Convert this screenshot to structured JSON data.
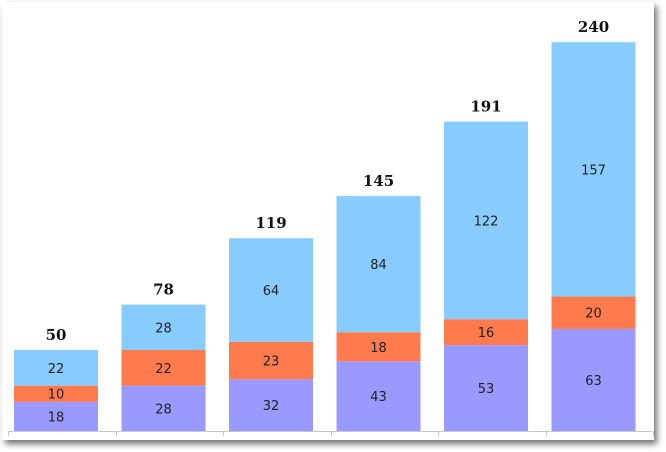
{
  "chart_data": {
    "type": "bar",
    "stacked": true,
    "categories": [
      "",
      "",
      "",
      "",
      "",
      ""
    ],
    "series": [
      {
        "values": [
          18,
          28,
          32,
          43,
          53,
          63
        ],
        "color": "#9999ff"
      },
      {
        "values": [
          10,
          22,
          23,
          18,
          16,
          20
        ],
        "color": "#ff7a4d"
      },
      {
        "values": [
          22,
          28,
          64,
          84,
          122,
          157
        ],
        "color": "#88ccff"
      }
    ],
    "totals": [
      50,
      78,
      119,
      145,
      191,
      240
    ],
    "ylim": [
      0,
      260
    ],
    "grid": false,
    "legend": "none",
    "title": "",
    "xlabel": "",
    "ylabel": ""
  }
}
